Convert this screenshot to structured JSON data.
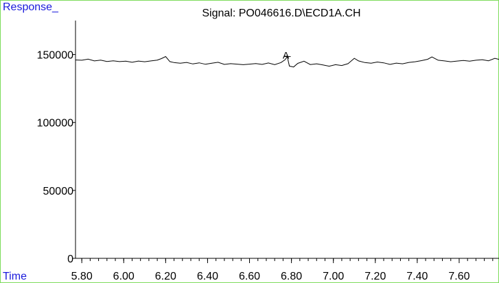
{
  "chart_data": {
    "type": "line",
    "title": "Signal: PO046616.D\\ECD1A.CH",
    "ylabel": "Response_",
    "xlabel": "Time",
    "xlim": [
      5.77,
      7.79
    ],
    "ylim": [
      0,
      175000
    ],
    "x_ticks": [
      5.8,
      6.0,
      6.2,
      6.4,
      6.6,
      6.8,
      7.0,
      7.2,
      7.4,
      7.6
    ],
    "x_tick_labels": [
      "5.80",
      "6.00",
      "6.20",
      "6.40",
      "6.60",
      "6.80",
      "7.00",
      "7.20",
      "7.40",
      "7.60"
    ],
    "x_minor_step": 0.04,
    "y_ticks": [
      0,
      50000,
      100000,
      150000
    ],
    "y_tick_labels": [
      "0",
      "50000",
      "100000",
      "150000"
    ],
    "grid": false,
    "colors": {
      "frame": "#7cdc5a",
      "axis_labels": "#1a1adc",
      "trace": "#000000"
    },
    "annotations": [
      {
        "x": 6.78,
        "y": 148500,
        "text": "A"
      }
    ],
    "series": [
      {
        "x": [
          5.77,
          5.8,
          5.83,
          5.86,
          5.89,
          5.92,
          5.95,
          5.98,
          6.01,
          6.04,
          6.07,
          6.1,
          6.13,
          6.16,
          6.18,
          6.2,
          6.22,
          6.24,
          6.27,
          6.3,
          6.33,
          6.36,
          6.39,
          6.42,
          6.45,
          6.48,
          6.51,
          6.54,
          6.57,
          6.6,
          6.63,
          6.66,
          6.69,
          6.72,
          6.75,
          6.77,
          6.78,
          6.79,
          6.81,
          6.83,
          6.86,
          6.89,
          6.92,
          6.95,
          6.98,
          7.01,
          7.04,
          7.07,
          7.1,
          7.12,
          7.15,
          7.18,
          7.21,
          7.24,
          7.27,
          7.3,
          7.33,
          7.36,
          7.39,
          7.42,
          7.45,
          7.47,
          7.5,
          7.53,
          7.56,
          7.59,
          7.62,
          7.65,
          7.68,
          7.71,
          7.74,
          7.77,
          7.79
        ],
        "y": [
          146000,
          145800,
          146600,
          145300,
          145900,
          144900,
          145400,
          144800,
          145100,
          144300,
          145200,
          144700,
          145300,
          145900,
          147000,
          148500,
          144800,
          144100,
          143600,
          144200,
          143100,
          143900,
          142800,
          143600,
          144300,
          142700,
          143300,
          142900,
          142500,
          142900,
          143400,
          142700,
          143800,
          142500,
          144100,
          146200,
          148500,
          141500,
          140800,
          143500,
          145100,
          142600,
          143200,
          142300,
          141400,
          142500,
          141900,
          143300,
          147200,
          145300,
          144100,
          143600,
          144500,
          143900,
          142700,
          143700,
          143200,
          144200,
          144700,
          145500,
          146500,
          148200,
          145800,
          145300,
          144700,
          145200,
          145600,
          145100,
          145800,
          146200,
          145400,
          147200,
          146400
        ]
      }
    ]
  }
}
